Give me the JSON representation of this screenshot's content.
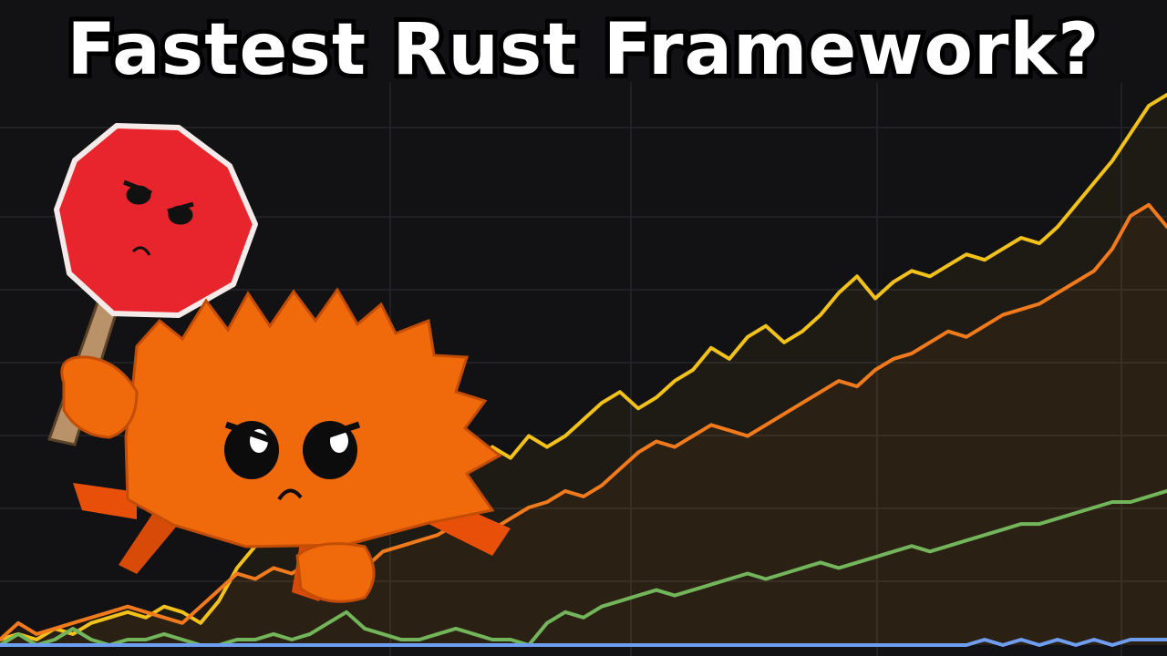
{
  "thumbnail": {
    "title": "Fastest Rust Framework?"
  },
  "colors": {
    "background": "#121214",
    "grid": "#26262b",
    "series_yellow": "#f2c21b",
    "series_orange": "#f07a1c",
    "series_green": "#72b55a",
    "series_blue": "#6e9ef0",
    "crab_body": "#f06a0c",
    "sign": "#e8242c"
  },
  "mascot": {
    "icon": "ferris-crab-icon",
    "sign_icon": "stop-sign-icon"
  },
  "chart_data": {
    "type": "line",
    "title": "",
    "xlabel": "",
    "ylabel": "",
    "grid": true,
    "ylim": [
      0,
      100
    ],
    "x": [
      0,
      1,
      2,
      3,
      4,
      5,
      6,
      7,
      8,
      9,
      10,
      11,
      12,
      13,
      14,
      15,
      16,
      17,
      18,
      19,
      20,
      21,
      22,
      23,
      24,
      25,
      26,
      27,
      28,
      29,
      30,
      31,
      32,
      33,
      34,
      35,
      36,
      37,
      38,
      39,
      40,
      41,
      42,
      43,
      44,
      45,
      46,
      47,
      48,
      49,
      50,
      51,
      52,
      53,
      54,
      55,
      56,
      57,
      58,
      59,
      60,
      61,
      62,
      63,
      64
    ],
    "series": [
      {
        "color": "#f2c21b",
        "values": [
          1,
          2,
          1,
          3,
          2,
          4,
          5,
          6,
          5,
          7,
          6,
          4,
          8,
          14,
          18,
          20,
          22,
          24,
          26,
          21,
          20,
          26,
          28,
          27,
          26,
          30,
          33,
          36,
          34,
          38,
          36,
          38,
          41,
          44,
          46,
          43,
          45,
          48,
          50,
          54,
          52,
          56,
          58,
          55,
          57,
          60,
          64,
          67,
          63,
          66,
          68,
          67,
          69,
          71,
          70,
          72,
          74,
          73,
          76,
          80,
          84,
          88,
          93,
          98,
          100
        ]
      },
      {
        "color": "#f07a1c",
        "values": [
          1,
          4,
          2,
          3,
          4,
          5,
          6,
          7,
          6,
          5,
          4,
          7,
          10,
          13,
          12,
          14,
          13,
          15,
          16,
          12,
          14,
          17,
          18,
          19,
          20,
          22,
          20,
          21,
          23,
          25,
          26,
          28,
          27,
          29,
          32,
          35,
          37,
          36,
          38,
          40,
          39,
          38,
          40,
          42,
          44,
          46,
          48,
          47,
          50,
          52,
          53,
          55,
          57,
          56,
          58,
          60,
          61,
          62,
          64,
          66,
          68,
          72,
          78,
          80,
          76
        ]
      },
      {
        "color": "#72b55a",
        "values": [
          0,
          2,
          0,
          1,
          3,
          1,
          0,
          1,
          1,
          2,
          1,
          0,
          0,
          1,
          1,
          2,
          1,
          2,
          4,
          6,
          3,
          2,
          1,
          1,
          2,
          3,
          2,
          1,
          1,
          0,
          4,
          6,
          5,
          7,
          8,
          9,
          10,
          9,
          10,
          11,
          12,
          13,
          12,
          13,
          14,
          15,
          14,
          15,
          16,
          17,
          18,
          17,
          18,
          19,
          20,
          21,
          22,
          22,
          23,
          24,
          25,
          26,
          26,
          27,
          28
        ]
      },
      {
        "color": "#6e9ef0",
        "values": [
          0,
          0,
          0,
          0,
          0,
          0,
          0,
          0,
          0,
          0,
          0,
          0,
          0,
          0,
          0,
          0,
          0,
          0,
          0,
          0,
          0,
          0,
          0,
          0,
          0,
          0,
          0,
          0,
          0,
          0,
          0,
          0,
          0,
          0,
          0,
          0,
          0,
          0,
          0,
          0,
          0,
          0,
          0,
          0,
          0,
          0,
          0,
          0,
          0,
          0,
          0,
          0,
          0,
          0,
          1,
          0,
          1,
          0,
          1,
          0,
          1,
          0,
          1,
          1,
          1
        ]
      }
    ]
  }
}
